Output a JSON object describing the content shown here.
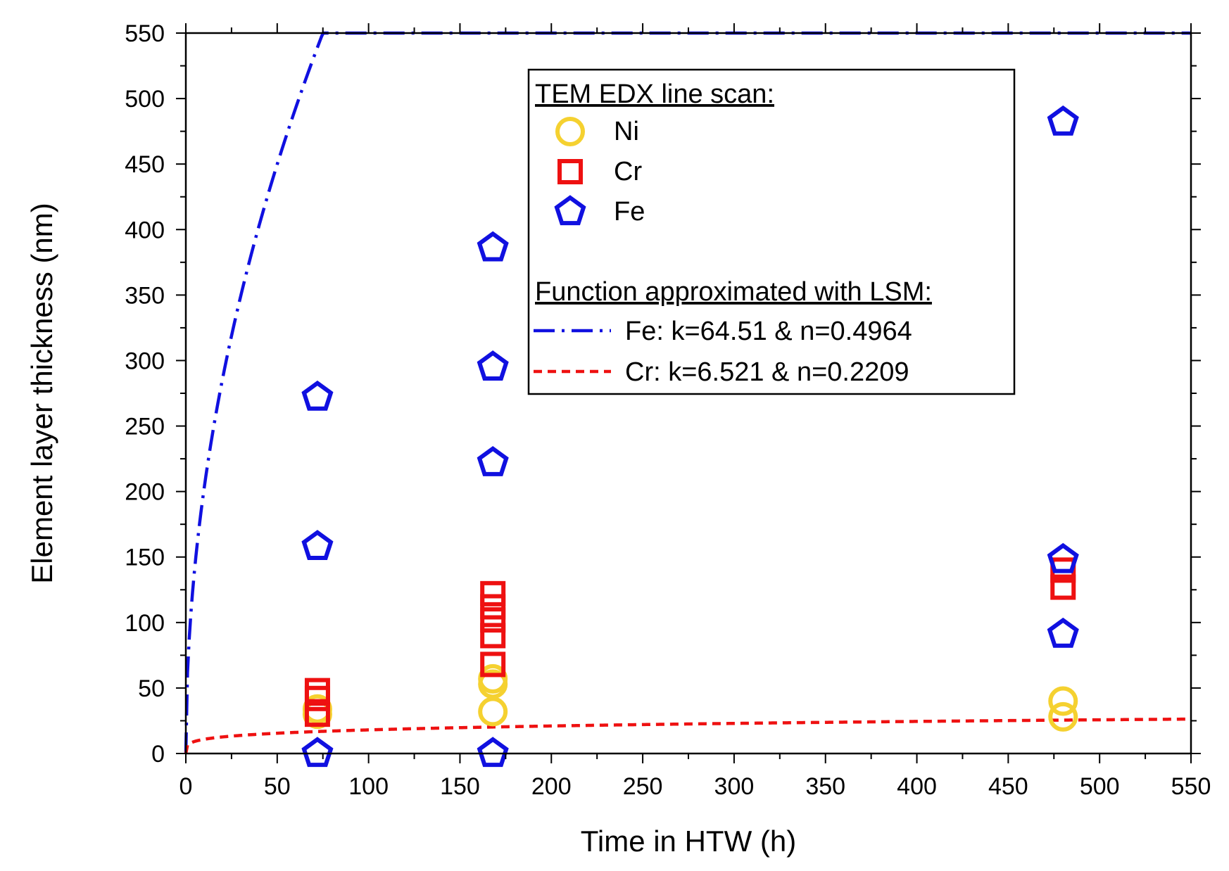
{
  "chart_data": {
    "type": "scatter",
    "xlabel": "Time in HTW (h)",
    "ylabel": "Element layer thickness (nm)",
    "xlim": [
      0,
      550
    ],
    "ylim": [
      0,
      550
    ],
    "xticks": [
      0,
      50,
      100,
      150,
      200,
      250,
      300,
      350,
      400,
      450,
      500,
      550
    ],
    "yticks": [
      0,
      50,
      100,
      150,
      200,
      250,
      300,
      350,
      400,
      450,
      500,
      550
    ],
    "grid": false,
    "legend_position": "top-right",
    "legend": {
      "scatter_heading": "TEM EDX line scan:",
      "fit_heading": "Function approximated with LSM:"
    },
    "series": [
      {
        "name": "Ni",
        "marker": "circle",
        "color": "#F5D130",
        "points": [
          [
            72,
            30
          ],
          [
            72,
            34
          ],
          [
            168,
            32
          ],
          [
            168,
            53
          ],
          [
            168,
            57
          ],
          [
            480,
            28
          ],
          [
            480,
            40
          ]
        ]
      },
      {
        "name": "Cr",
        "marker": "square",
        "color": "#EE1111",
        "points": [
          [
            72,
            30
          ],
          [
            72,
            42
          ],
          [
            72,
            48
          ],
          [
            168,
            68
          ],
          [
            168,
            90
          ],
          [
            168,
            102
          ],
          [
            168,
            112
          ],
          [
            168,
            122
          ],
          [
            480,
            127
          ],
          [
            480,
            140
          ]
        ]
      },
      {
        "name": "Fe",
        "marker": "pentagon",
        "color": "#1010E0",
        "points": [
          [
            72,
            0
          ],
          [
            72,
            158
          ],
          [
            72,
            272
          ],
          [
            168,
            0
          ],
          [
            168,
            222
          ],
          [
            168,
            295
          ],
          [
            168,
            386
          ],
          [
            480,
            91
          ],
          [
            480,
            148
          ],
          [
            480,
            482
          ]
        ]
      }
    ],
    "fits": [
      {
        "name": "Fe: k=64.51 & n=0.4964",
        "k": 64.51,
        "n": 0.4964,
        "color": "#1010E0",
        "style": "dashdot"
      },
      {
        "name": "Cr: k=6.521 & n=0.2209",
        "k": 6.521,
        "n": 0.2209,
        "color": "#EE1111",
        "style": "dash"
      }
    ]
  }
}
